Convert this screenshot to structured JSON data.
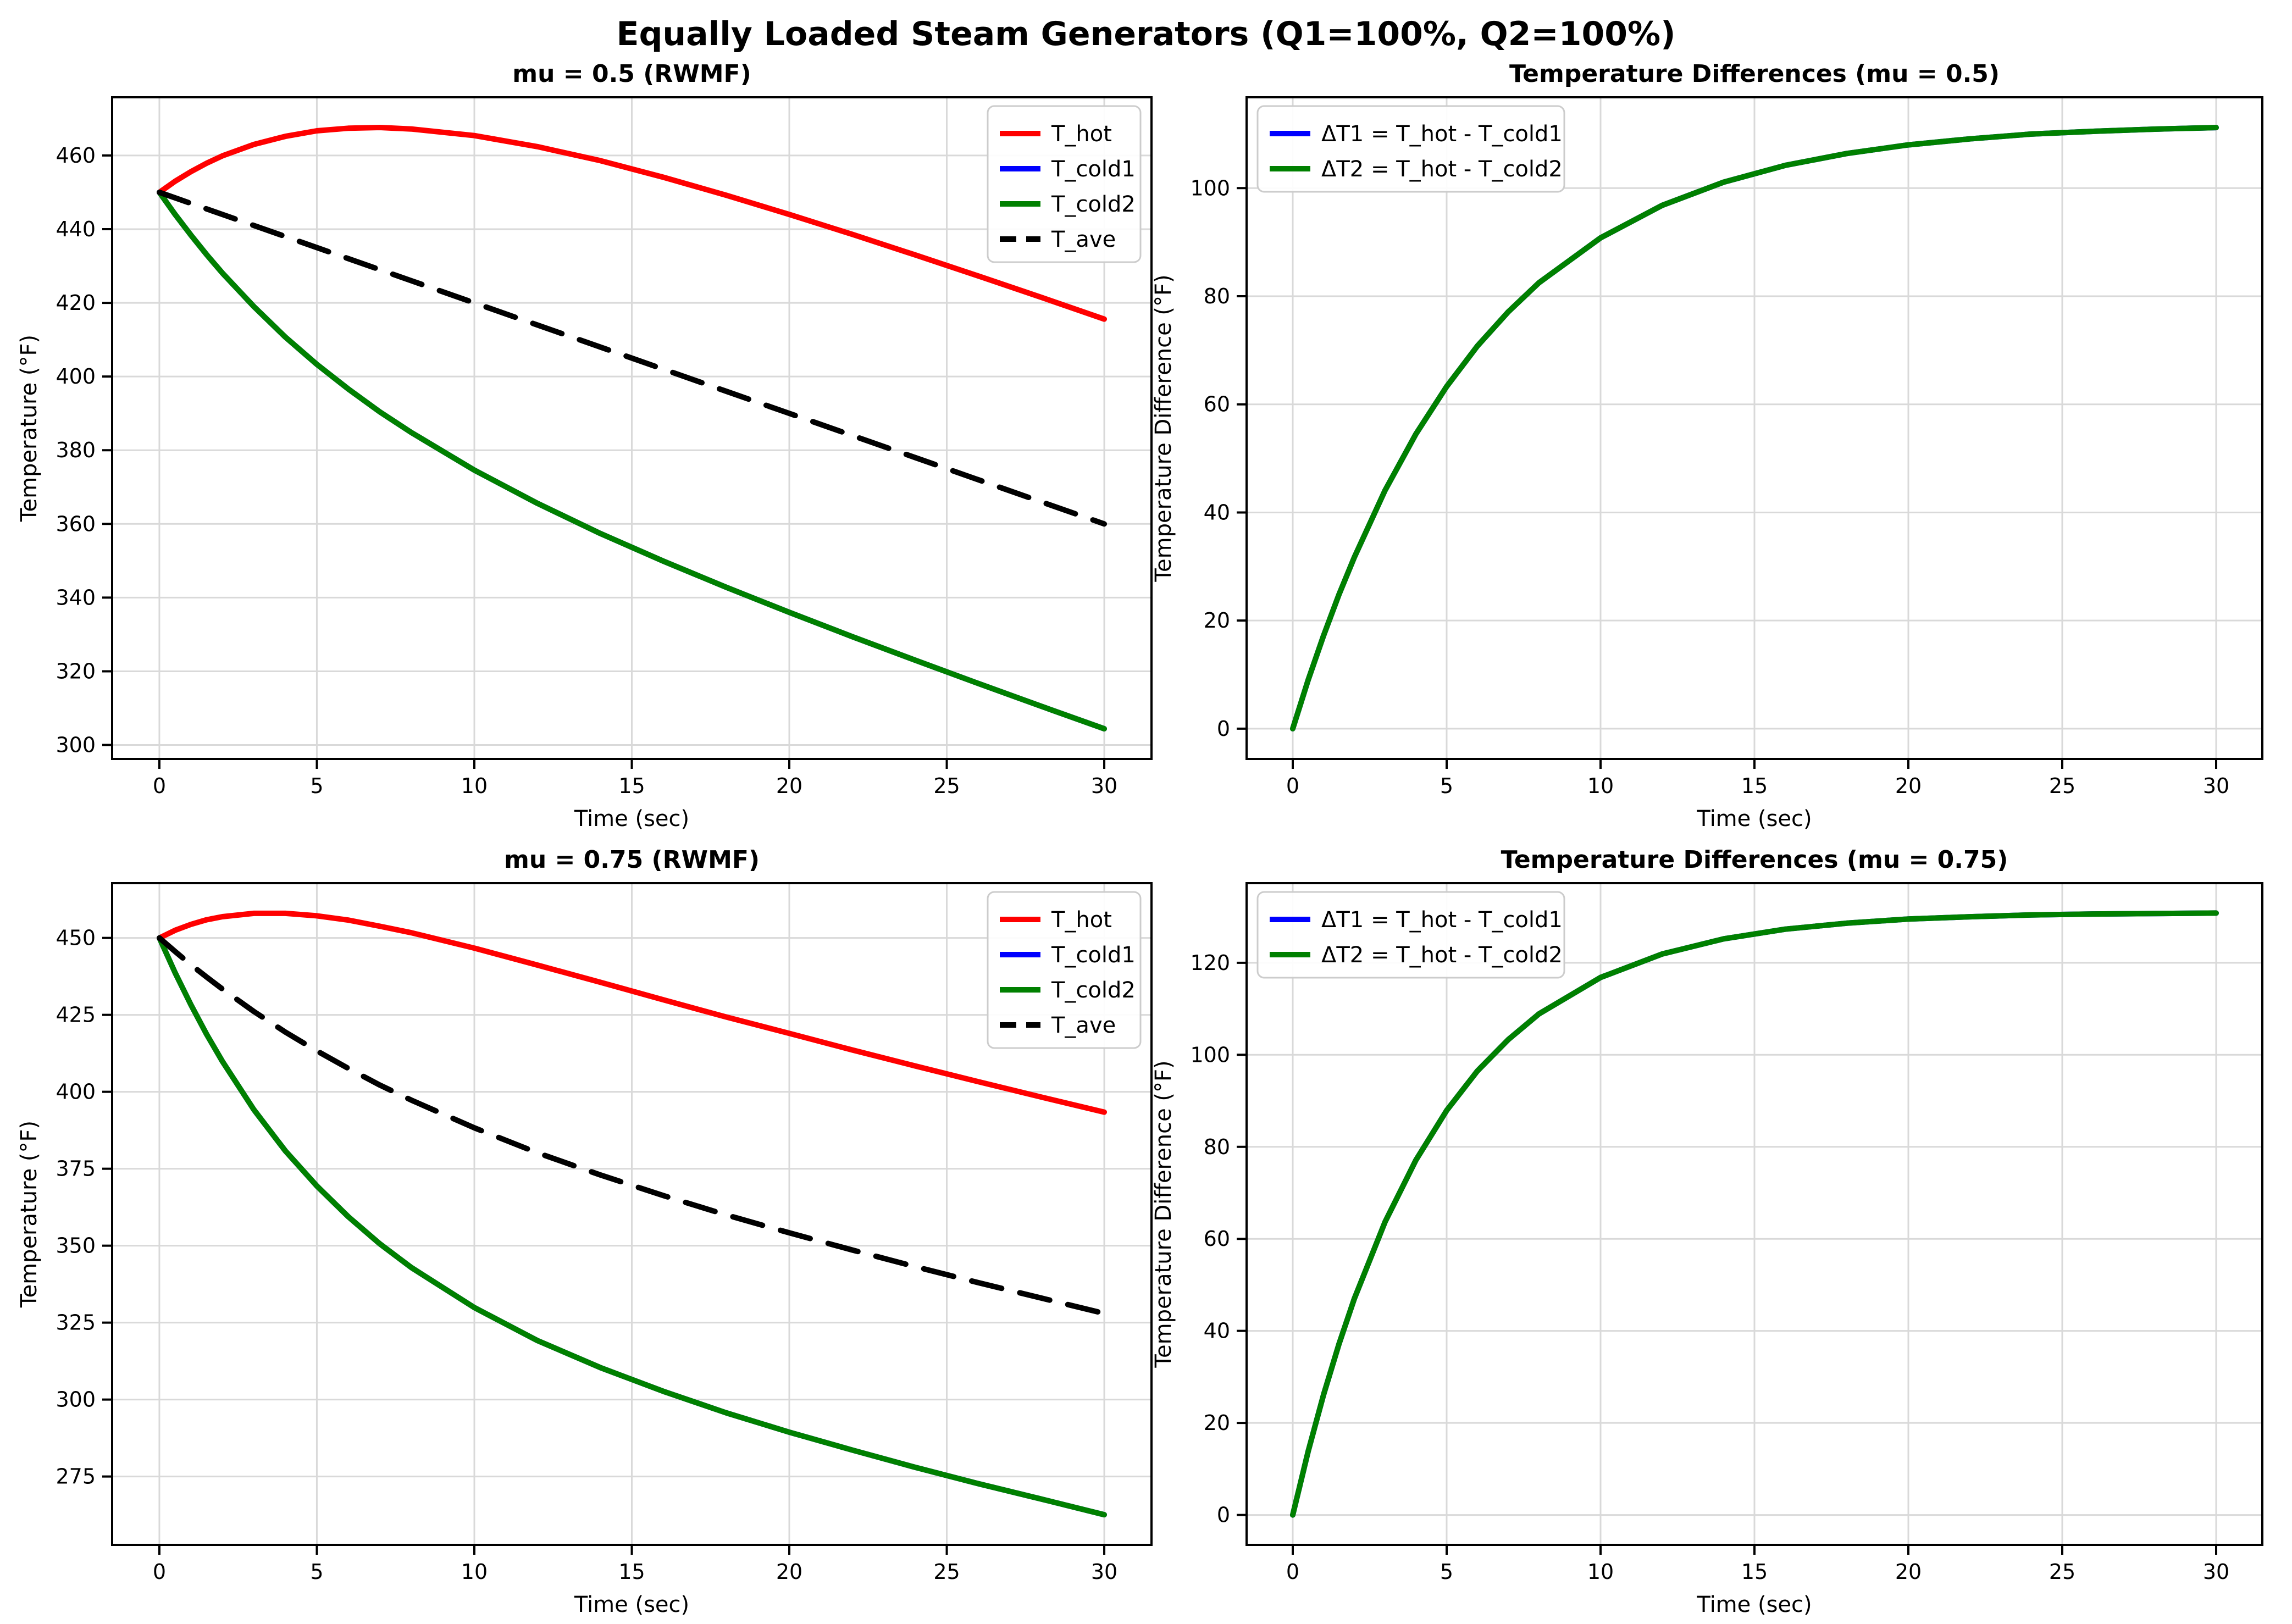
{
  "figure": {
    "suptitle": "Equally Loaded Steam Generators (Q1=100%, Q2=100%)",
    "background": "#ffffff",
    "grid_color": "#d9d9d9",
    "spine_color": "#000000"
  },
  "chart_data": [
    {
      "type": "line",
      "title": "mu = 0.5 (RWMF)",
      "xlabel": "Time (sec)",
      "ylabel": "Temperature (°F)",
      "xlim": [
        -1.5,
        31.5
      ],
      "ylim": [
        296.2,
        475.8
      ],
      "xticks": [
        0,
        5,
        10,
        15,
        20,
        25,
        30
      ],
      "yticks": [
        300,
        320,
        340,
        360,
        380,
        400,
        420,
        440,
        460
      ],
      "grid": true,
      "legend_loc": "upper right",
      "x": [
        0,
        0.5,
        1,
        1.5,
        2,
        3,
        4,
        5,
        6,
        7,
        8,
        10,
        12,
        14,
        16,
        18,
        20,
        22,
        24,
        26,
        28,
        30
      ],
      "series": [
        {
          "name": "T_hot",
          "color": "#ff0000",
          "dash": false,
          "values": [
            450,
            453.0,
            455.6,
            457.9,
            459.9,
            463.0,
            465.2,
            466.7,
            467.4,
            467.6,
            467.2,
            465.4,
            462.4,
            458.6,
            454.1,
            449.2,
            444.0,
            438.6,
            433.0,
            427.3,
            421.5,
            415.6
          ]
        },
        {
          "name": "T_cold1",
          "color": "#0000ff",
          "dash": false,
          "values": [
            450,
            444.0,
            438.4,
            433.1,
            428.1,
            419.0,
            410.7,
            403.3,
            396.6,
            390.4,
            384.8,
            374.6,
            365.6,
            357.4,
            349.9,
            342.8,
            336.0,
            329.4,
            323.0,
            316.7,
            310.5,
            304.4
          ]
        },
        {
          "name": "T_cold2",
          "color": "#008000",
          "dash": false,
          "values": [
            450,
            444.0,
            438.4,
            433.1,
            428.1,
            419.0,
            410.7,
            403.3,
            396.6,
            390.4,
            384.8,
            374.6,
            365.6,
            357.4,
            349.9,
            342.8,
            336.0,
            329.4,
            323.0,
            316.7,
            310.5,
            304.4
          ]
        },
        {
          "name": "T_ave",
          "color": "#000000",
          "dash": true,
          "values": [
            450,
            448.5,
            447.0,
            445.5,
            444.0,
            441.0,
            438.0,
            435.0,
            432.0,
            429.0,
            426.0,
            420.0,
            414.0,
            408.0,
            402.0,
            396.0,
            390.0,
            384.0,
            378.0,
            372.0,
            366.0,
            360.0
          ]
        }
      ],
      "legend": [
        {
          "label": "T_hot",
          "color": "#ff0000",
          "dash": false
        },
        {
          "label": "T_cold1",
          "color": "#0000ff",
          "dash": false
        },
        {
          "label": "T_cold2",
          "color": "#008000",
          "dash": false
        },
        {
          "label": "T_ave",
          "color": "#000000",
          "dash": true
        }
      ]
    },
    {
      "type": "line",
      "title": "Temperature Differences (mu = 0.5)",
      "xlabel": "Time (sec)",
      "ylabel": "Temperature Difference (°F)",
      "xlim": [
        -1.5,
        31.5
      ],
      "ylim": [
        -5.6,
        116.8
      ],
      "xticks": [
        0,
        5,
        10,
        15,
        20,
        25,
        30
      ],
      "yticks": [
        0,
        20,
        40,
        60,
        80,
        100
      ],
      "grid": true,
      "legend_loc": "upper left",
      "x": [
        0,
        0.5,
        1,
        1.5,
        2,
        3,
        4,
        5,
        6,
        7,
        8,
        10,
        12,
        14,
        16,
        18,
        20,
        22,
        24,
        26,
        28,
        30
      ],
      "series": [
        {
          "name": "ΔT1 = T_hot - T_cold1",
          "color": "#0000ff",
          "dash": false,
          "values": [
            0,
            9.0,
            17.2,
            24.8,
            31.7,
            44.1,
            54.5,
            63.3,
            70.8,
            77.1,
            82.5,
            90.8,
            96.8,
            101.1,
            104.2,
            106.4,
            108.0,
            109.1,
            110.0,
            110.5,
            110.9,
            111.2
          ]
        },
        {
          "name": "ΔT2 = T_hot - T_cold2",
          "color": "#008000",
          "dash": false,
          "values": [
            0,
            9.0,
            17.2,
            24.8,
            31.7,
            44.1,
            54.5,
            63.3,
            70.8,
            77.1,
            82.5,
            90.8,
            96.8,
            101.1,
            104.2,
            106.4,
            108.0,
            109.1,
            110.0,
            110.5,
            110.9,
            111.2
          ]
        }
      ],
      "legend": [
        {
          "label": "ΔT1 = T_hot - T_cold1",
          "color": "#0000ff",
          "dash": false
        },
        {
          "label": "ΔT2 = T_hot - T_cold2",
          "color": "#008000",
          "dash": false
        }
      ]
    },
    {
      "type": "line",
      "title": "mu = 0.75 (RWMF)",
      "xlabel": "Time (sec)",
      "ylabel": "Temperature (°F)",
      "xlim": [
        -1.5,
        31.5
      ],
      "ylim": [
        252.8,
        467.8
      ],
      "xticks": [
        0,
        5,
        10,
        15,
        20,
        25,
        30
      ],
      "yticks": [
        275,
        300,
        325,
        350,
        375,
        400,
        425,
        450
      ],
      "grid": true,
      "legend_loc": "upper right",
      "x": [
        0,
        0.5,
        1,
        1.5,
        2,
        3,
        4,
        5,
        6,
        7,
        8,
        10,
        12,
        14,
        16,
        18,
        20,
        22,
        24,
        26,
        28,
        30
      ],
      "series": [
        {
          "name": "T_hot",
          "color": "#ff0000",
          "dash": false,
          "values": [
            450,
            452.5,
            454.4,
            455.9,
            456.9,
            458.0,
            458.0,
            457.2,
            455.8,
            453.8,
            451.7,
            446.7,
            441.2,
            435.6,
            429.9,
            424.3,
            419.0,
            413.6,
            408.4,
            403.3,
            398.3,
            393.4
          ]
        },
        {
          "name": "T_cold1",
          "color": "#0000ff",
          "dash": false,
          "values": [
            450,
            438.7,
            428.3,
            418.7,
            409.9,
            394.2,
            380.8,
            369.4,
            359.4,
            350.6,
            342.9,
            329.9,
            319.2,
            310.4,
            302.7,
            295.7,
            289.4,
            283.6,
            278.0,
            272.7,
            267.7,
            262.6
          ]
        },
        {
          "name": "T_cold2",
          "color": "#008000",
          "dash": false,
          "values": [
            450,
            438.7,
            428.3,
            418.7,
            409.9,
            394.2,
            380.8,
            369.4,
            359.4,
            350.6,
            342.9,
            329.9,
            319.2,
            310.4,
            302.7,
            295.7,
            289.4,
            283.6,
            278.0,
            272.7,
            267.7,
            262.6
          ]
        },
        {
          "name": "T_ave",
          "color": "#000000",
          "dash": true,
          "values": [
            450,
            445.6,
            441.3,
            437.3,
            433.4,
            426.1,
            419.4,
            413.3,
            407.6,
            402.2,
            397.3,
            388.3,
            380.2,
            373.0,
            366.3,
            360.0,
            354.2,
            348.6,
            343.2,
            338.0,
            333.0,
            328.0
          ]
        }
      ],
      "legend": [
        {
          "label": "T_hot",
          "color": "#ff0000",
          "dash": false
        },
        {
          "label": "T_cold1",
          "color": "#0000ff",
          "dash": false
        },
        {
          "label": "T_cold2",
          "color": "#008000",
          "dash": false
        },
        {
          "label": "T_ave",
          "color": "#000000",
          "dash": true
        }
      ]
    },
    {
      "type": "line",
      "title": "Temperature Differences (mu = 0.75)",
      "xlabel": "Time (sec)",
      "ylabel": "Temperature Difference (°F)",
      "xlim": [
        -1.5,
        31.5
      ],
      "ylim": [
        -6.5,
        137.3
      ],
      "xticks": [
        0,
        5,
        10,
        15,
        20,
        25,
        30
      ],
      "yticks": [
        0,
        20,
        40,
        60,
        80,
        100,
        120
      ],
      "grid": true,
      "legend_loc": "upper left",
      "x": [
        0,
        0.5,
        1,
        1.5,
        2,
        3,
        4,
        5,
        6,
        7,
        8,
        10,
        12,
        14,
        16,
        18,
        20,
        22,
        24,
        26,
        28,
        30
      ],
      "series": [
        {
          "name": "ΔT1 = T_hot - T_cold1",
          "color": "#0000ff",
          "dash": false,
          "values": [
            0,
            13.8,
            26.1,
            37.1,
            47.0,
            63.7,
            77.1,
            87.9,
            96.5,
            103.3,
            108.9,
            116.8,
            121.9,
            125.2,
            127.3,
            128.6,
            129.5,
            130.0,
            130.4,
            130.6,
            130.7,
            130.8
          ]
        },
        {
          "name": "ΔT2 = T_hot - T_cold2",
          "color": "#008000",
          "dash": false,
          "values": [
            0,
            13.8,
            26.1,
            37.1,
            47.0,
            63.7,
            77.1,
            87.9,
            96.5,
            103.3,
            108.9,
            116.8,
            121.9,
            125.2,
            127.3,
            128.6,
            129.5,
            130.0,
            130.4,
            130.6,
            130.7,
            130.8
          ]
        }
      ],
      "legend": [
        {
          "label": "ΔT1 = T_hot - T_cold1",
          "color": "#0000ff",
          "dash": false
        },
        {
          "label": "ΔT2 = T_hot - T_cold2",
          "color": "#008000",
          "dash": false
        }
      ]
    }
  ]
}
